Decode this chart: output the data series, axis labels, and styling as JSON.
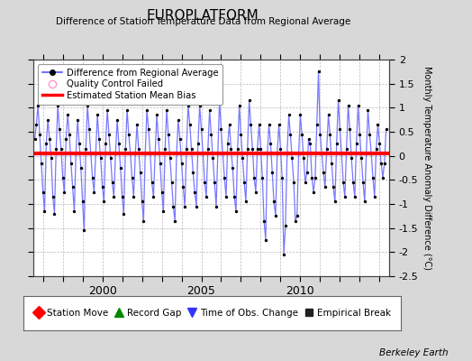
{
  "title": "EUROPLATFORM",
  "subtitle": "Difference of Station Temperature Data from Regional Average",
  "ylabel": "Monthly Temperature Anomaly Difference (°C)",
  "xlabel_years": [
    2000,
    2005,
    2010
  ],
  "xlim": [
    1996.5,
    2014.5
  ],
  "ylim": [
    -2.5,
    2.0
  ],
  "yticks": [
    -2.5,
    -2.0,
    -1.5,
    -1.0,
    -0.5,
    0.0,
    0.5,
    1.0,
    1.5,
    2.0
  ],
  "bias_level": 0.05,
  "line_color": "#7777ff",
  "dot_color": "#000000",
  "bias_color": "#ff0000",
  "bg_color": "#d8d8d8",
  "plot_bg": "#ffffff",
  "grid_color": "#bbbbbb",
  "watermark": "Berkeley Earth",
  "legend1": [
    {
      "label": "Difference from Regional Average",
      "lc": "#5555ff",
      "mc": "#000000"
    },
    {
      "label": "Quality Control Failed",
      "mc": "#ff99cc"
    },
    {
      "label": "Estimated Station Mean Bias",
      "lc": "#ff0000"
    }
  ],
  "legend2": [
    {
      "label": "Station Move",
      "color": "#ff0000",
      "marker": "D"
    },
    {
      "label": "Record Gap",
      "color": "#008800",
      "marker": "^"
    },
    {
      "label": "Time of Obs. Change",
      "color": "#3333ff",
      "marker": "v"
    },
    {
      "label": "Empirical Break",
      "color": "#222222",
      "marker": "s"
    }
  ],
  "data_x": [
    1996.583,
    1996.667,
    1996.75,
    1996.833,
    1996.917,
    1997.0,
    1997.083,
    1997.167,
    1997.25,
    1997.333,
    1997.417,
    1997.5,
    1997.583,
    1997.667,
    1997.75,
    1997.833,
    1997.917,
    1998.0,
    1998.083,
    1998.167,
    1998.25,
    1998.333,
    1998.417,
    1998.5,
    1998.583,
    1998.667,
    1998.75,
    1998.833,
    1998.917,
    1999.0,
    1999.083,
    1999.167,
    1999.25,
    1999.333,
    1999.417,
    1999.5,
    1999.583,
    1999.667,
    1999.75,
    1999.833,
    1999.917,
    2000.0,
    2000.083,
    2000.167,
    2000.25,
    2000.333,
    2000.417,
    2000.5,
    2000.583,
    2000.667,
    2000.75,
    2000.833,
    2000.917,
    2001.0,
    2001.083,
    2001.167,
    2001.25,
    2001.333,
    2001.417,
    2001.5,
    2001.583,
    2001.667,
    2001.75,
    2001.833,
    2001.917,
    2002.0,
    2002.083,
    2002.167,
    2002.25,
    2002.333,
    2002.417,
    2002.5,
    2002.583,
    2002.667,
    2002.75,
    2002.833,
    2002.917,
    2003.0,
    2003.083,
    2003.167,
    2003.25,
    2003.333,
    2003.417,
    2003.5,
    2003.583,
    2003.667,
    2003.75,
    2003.833,
    2003.917,
    2004.0,
    2004.083,
    2004.167,
    2004.25,
    2004.333,
    2004.417,
    2004.5,
    2004.583,
    2004.667,
    2004.75,
    2004.833,
    2004.917,
    2005.0,
    2005.083,
    2005.167,
    2005.25,
    2005.333,
    2005.417,
    2005.5,
    2005.583,
    2005.667,
    2005.75,
    2005.833,
    2005.917,
    2006.0,
    2006.083,
    2006.167,
    2006.25,
    2006.333,
    2006.417,
    2006.5,
    2006.583,
    2006.667,
    2006.75,
    2006.833,
    2006.917,
    2007.0,
    2007.083,
    2007.167,
    2007.25,
    2007.333,
    2007.417,
    2007.5,
    2007.583,
    2007.667,
    2007.75,
    2007.833,
    2007.917,
    2008.0,
    2008.083,
    2008.167,
    2008.25,
    2008.333,
    2008.417,
    2008.5,
    2008.583,
    2008.667,
    2008.75,
    2008.833,
    2008.917,
    2009.0,
    2009.083,
    2009.167,
    2009.25,
    2009.333,
    2009.417,
    2009.5,
    2009.583,
    2009.667,
    2009.75,
    2009.833,
    2009.917,
    2010.0,
    2010.083,
    2010.167,
    2010.25,
    2010.333,
    2010.417,
    2010.5,
    2010.583,
    2010.667,
    2010.75,
    2010.833,
    2010.917,
    2011.0,
    2011.083,
    2011.167,
    2011.25,
    2011.333,
    2011.417,
    2011.5,
    2011.583,
    2011.667,
    2011.75,
    2011.833,
    2011.917,
    2012.0,
    2012.083,
    2012.167,
    2012.25,
    2012.333,
    2012.417,
    2012.5,
    2012.583,
    2012.667,
    2012.75,
    2012.833,
    2012.917,
    2013.0,
    2013.083,
    2013.167,
    2013.25,
    2013.333,
    2013.417,
    2013.5,
    2013.583,
    2013.667,
    2013.75,
    2013.833,
    2013.917,
    2014.0,
    2014.083,
    2014.167,
    2014.25,
    2014.333
  ],
  "data_y": [
    0.35,
    0.65,
    1.05,
    0.45,
    -0.15,
    -0.75,
    -1.15,
    0.25,
    0.75,
    0.35,
    -0.05,
    -0.85,
    -1.2,
    0.15,
    1.05,
    0.55,
    0.15,
    -0.45,
    -0.75,
    0.35,
    0.85,
    0.45,
    -0.15,
    -0.65,
    -1.15,
    0.05,
    0.75,
    0.25,
    -0.25,
    -0.95,
    -1.55,
    0.15,
    1.05,
    0.55,
    0.05,
    -0.45,
    -0.75,
    0.05,
    0.85,
    0.35,
    -0.05,
    -0.65,
    -0.95,
    0.25,
    0.95,
    0.45,
    -0.05,
    -0.55,
    -0.85,
    0.05,
    0.75,
    0.25,
    -0.25,
    -0.85,
    -1.2,
    0.15,
    0.95,
    0.45,
    0.05,
    -0.45,
    -0.85,
    0.05,
    0.65,
    0.15,
    -0.35,
    -0.95,
    -1.35,
    0.05,
    0.95,
    0.55,
    0.05,
    -0.55,
    -0.85,
    0.05,
    0.85,
    0.35,
    -0.15,
    -0.75,
    -1.15,
    0.15,
    0.95,
    0.45,
    -0.05,
    -0.55,
    -1.05,
    -1.35,
    0.05,
    0.75,
    0.35,
    -0.15,
    -0.65,
    -1.05,
    0.15,
    1.05,
    0.65,
    0.15,
    -0.35,
    -0.75,
    -1.05,
    0.25,
    1.05,
    0.55,
    0.05,
    -0.55,
    -0.85,
    0.15,
    0.95,
    0.45,
    -0.05,
    -0.55,
    -1.05,
    0.05,
    1.15,
    0.55,
    0.05,
    -0.45,
    -0.85,
    0.25,
    0.65,
    0.15,
    -0.25,
    -0.85,
    -1.15,
    0.15,
    1.05,
    0.45,
    -0.05,
    -0.55,
    -0.95,
    0.15,
    1.15,
    0.65,
    0.15,
    -0.45,
    -0.75,
    0.15,
    0.65,
    0.15,
    -0.45,
    -1.35,
    -1.75,
    0.05,
    0.65,
    0.25,
    -0.35,
    -0.95,
    -1.25,
    0.05,
    0.65,
    0.15,
    -0.45,
    -2.05,
    -1.45,
    0.05,
    0.85,
    0.45,
    -0.05,
    -0.55,
    -1.35,
    -1.25,
    0.05,
    0.85,
    0.45,
    -0.05,
    -0.55,
    -0.35,
    0.35,
    0.25,
    -0.45,
    -0.75,
    -0.45,
    0.65,
    1.75,
    0.45,
    0.05,
    -0.35,
    -0.65,
    0.15,
    0.85,
    0.45,
    -0.15,
    -0.65,
    -0.95,
    0.25,
    1.15,
    0.55,
    0.05,
    -0.55,
    -0.85,
    0.15,
    1.05,
    0.55,
    -0.05,
    -0.55,
    -0.85,
    0.25,
    1.05,
    0.45,
    -0.05,
    -0.55,
    -0.95,
    0.05,
    0.95,
    0.45,
    0.05,
    -0.45,
    -0.85,
    0.15,
    0.65,
    0.25,
    -0.15,
    -0.45,
    -0.15,
    0.55
  ]
}
